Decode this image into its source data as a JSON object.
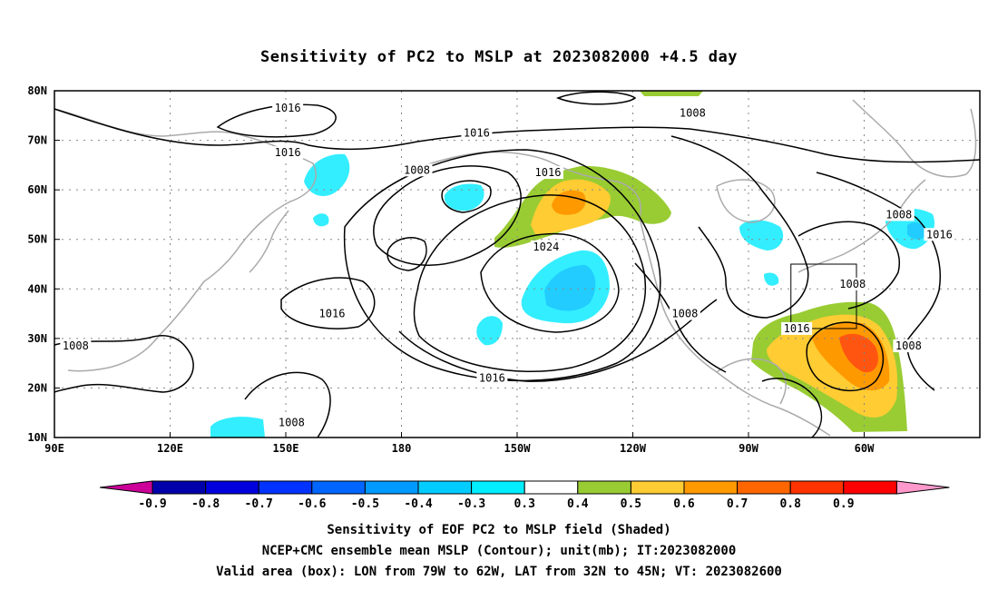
{
  "title": "Sensitivity of PC2 to MSLP at 2023082000 +4.5 day",
  "map": {
    "lon_ticks": [
      "90E",
      "120E",
      "150E",
      "180",
      "150W",
      "120W",
      "90W",
      "60W"
    ],
    "lat_ticks": [
      "80N",
      "70N",
      "60N",
      "50N",
      "40N",
      "30N",
      "20N",
      "10N"
    ],
    "lon_range": [
      90,
      330
    ],
    "lat_range": [
      10,
      80
    ],
    "gridlines": true,
    "contour_labels": [
      {
        "text": "1016",
        "lon": 150.5,
        "lat": 76.5
      },
      {
        "text": "1016",
        "lon": 199.5,
        "lat": 71.5
      },
      {
        "text": "1008",
        "lon": 255.5,
        "lat": 75.5
      },
      {
        "text": "1016",
        "lon": 150.5,
        "lat": 67.5
      },
      {
        "text": "1008",
        "lon": 184,
        "lat": 64
      },
      {
        "text": "1016",
        "lon": 218,
        "lat": 63.5
      },
      {
        "text": "1024",
        "lon": 217.5,
        "lat": 48.5
      },
      {
        "text": "1008",
        "lon": 309,
        "lat": 55
      },
      {
        "text": "1016",
        "lon": 319.5,
        "lat": 51
      },
      {
        "text": "1008",
        "lon": 297,
        "lat": 41
      },
      {
        "text": "1016",
        "lon": 162,
        "lat": 35
      },
      {
        "text": "1008",
        "lon": 95.5,
        "lat": 28.5
      },
      {
        "text": "1008",
        "lon": 253.5,
        "lat": 35
      },
      {
        "text": "1016",
        "lon": 282.5,
        "lat": 32
      },
      {
        "text": "1008",
        "lon": 311.5,
        "lat": 28.5
      },
      {
        "text": "1016",
        "lon": 203.5,
        "lat": 22
      },
      {
        "text": "1008",
        "lon": 151.5,
        "lat": 13
      }
    ],
    "valid_box": {
      "lon_min": 281,
      "lon_max": 298,
      "lat_min": 32,
      "lat_max": 45
    },
    "colors": {
      "neg_light": "#33eeff",
      "neg_mid": "#22ccff",
      "neg_dark": "#0099ff",
      "pos_green": "#99cc33",
      "pos_yellow": "#ffcc33",
      "pos_orange": "#ff9900",
      "pos_red": "#ff5511",
      "coast": "#aaaaaa"
    }
  },
  "colorbar": {
    "labels": [
      "-0.9",
      "-0.8",
      "-0.7",
      "-0.6",
      "-0.5",
      "-0.4",
      "-0.3",
      "0.3",
      "0.4",
      "0.5",
      "0.6",
      "0.7",
      "0.8",
      "0.9"
    ],
    "colors": [
      "#0000aa",
      "#0000dd",
      "#0033ff",
      "#0066ff",
      "#0099ff",
      "#00ccff",
      "#00eeff",
      "#ffffff",
      "#99cc33",
      "#ffcc33",
      "#ff9900",
      "#ff6600",
      "#ff3300",
      "#ff0000"
    ],
    "low_end_color": "#cc0099",
    "high_end_color": "#ff99cc"
  },
  "caption": {
    "line1": "Sensitivity of EOF PC2 to MSLP field (Shaded)",
    "line2": "NCEP+CMC ensemble mean MSLP (Contour); unit(mb); IT:2023082000",
    "line3": "Valid area (box): LON from 79W to 62W, LAT from 32N to 45N; VT: 2023082600"
  }
}
